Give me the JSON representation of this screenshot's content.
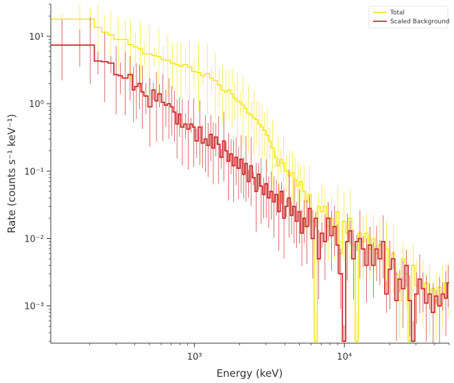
{
  "chart_data": {
    "type": "line",
    "xlabel": "Energy (keV)",
    "ylabel": "Rate (counts s⁻¹ keV⁻¹)",
    "xscale": "log",
    "yscale": "log",
    "xlim": [
      110,
      50000
    ],
    "ylim": [
      0.00028,
      30
    ],
    "x_ticks": [
      {
        "value": 1000,
        "label": "10³"
      },
      {
        "value": 10000,
        "label": "10⁴"
      }
    ],
    "y_ticks": [
      {
        "value": 0.001,
        "label": "10⁻³"
      },
      {
        "value": 0.01,
        "label": "10⁻²"
      },
      {
        "value": 0.1,
        "label": "10⁻¹"
      },
      {
        "value": 1,
        "label": "10⁰"
      },
      {
        "value": 10,
        "label": "10¹"
      }
    ],
    "legend": "top-right",
    "grid": false,
    "series": [
      {
        "name": "Total",
        "color": "#f5e61d",
        "style": "step",
        "points": [
          [
            110,
            18.0
          ],
          [
            155,
            18.0
          ],
          [
            190,
            18.0
          ],
          [
            215,
            13.5
          ],
          [
            240,
            11.5
          ],
          [
            265,
            10.5
          ],
          [
            290,
            9.0
          ],
          [
            330,
            9.0
          ],
          [
            360,
            7.5
          ],
          [
            390,
            7.0
          ],
          [
            420,
            6.5
          ],
          [
            450,
            5.5
          ],
          [
            480,
            5.5
          ],
          [
            520,
            5.2
          ],
          [
            560,
            5.0
          ],
          [
            600,
            4.5
          ],
          [
            640,
            4.4
          ],
          [
            690,
            4.0
          ],
          [
            740,
            3.8
          ],
          [
            790,
            3.6
          ],
          [
            840,
            3.8
          ],
          [
            900,
            3.5
          ],
          [
            960,
            3.0
          ],
          [
            1030,
            2.9
          ],
          [
            1100,
            2.6
          ],
          [
            1180,
            2.8
          ],
          [
            1260,
            2.4
          ],
          [
            1340,
            2.2
          ],
          [
            1420,
            1.9
          ],
          [
            1500,
            1.6
          ],
          [
            1580,
            1.5
          ],
          [
            1660,
            1.6
          ],
          [
            1740,
            1.4
          ],
          [
            1820,
            1.2
          ],
          [
            1900,
            1.1
          ],
          [
            1980,
            1.05
          ],
          [
            2060,
            0.95
          ],
          [
            2150,
            0.85
          ],
          [
            2240,
            0.72
          ],
          [
            2340,
            0.68
          ],
          [
            2440,
            0.62
          ],
          [
            2540,
            0.58
          ],
          [
            2650,
            0.5
          ],
          [
            2760,
            0.45
          ],
          [
            2880,
            0.4
          ],
          [
            3000,
            0.34
          ],
          [
            3120,
            0.28
          ],
          [
            3250,
            0.22
          ],
          [
            3400,
            0.16
          ],
          [
            3550,
            0.12
          ],
          [
            3700,
            0.15
          ],
          [
            3850,
            0.13
          ],
          [
            4000,
            0.1
          ],
          [
            4200,
            0.085
          ],
          [
            4400,
            0.095
          ],
          [
            4600,
            0.075
          ],
          [
            4800,
            0.06
          ],
          [
            5000,
            0.07
          ],
          [
            5250,
            0.05
          ],
          [
            5500,
            0.035
          ],
          [
            5750,
            0.045
          ],
          [
            6000,
            0.018
          ],
          [
            6300,
            0.0003
          ],
          [
            6600,
            0.03
          ],
          [
            6900,
            0.025
          ],
          [
            7250,
            0.03
          ],
          [
            7600,
            0.015
          ],
          [
            8000,
            0.02
          ],
          [
            8400,
            0.012
          ],
          [
            8800,
            0.025
          ],
          [
            9200,
            0.006
          ],
          [
            9700,
            0.018
          ],
          [
            10200,
            0.012
          ],
          [
            10700,
            0.02
          ],
          [
            11200,
            0.008
          ],
          [
            11800,
            0.0003
          ],
          [
            12400,
            0.012
          ],
          [
            13000,
            0.009
          ],
          [
            13700,
            0.012
          ],
          [
            14400,
            0.007
          ],
          [
            15200,
            0.01
          ],
          [
            16000,
            0.006
          ],
          [
            16800,
            0.008
          ],
          [
            17700,
            0.005
          ],
          [
            18600,
            0.007
          ],
          [
            19600,
            0.004
          ],
          [
            20600,
            0.006
          ],
          [
            21700,
            0.003
          ],
          [
            22800,
            0.0012
          ],
          [
            24000,
            0.005
          ],
          [
            25300,
            0.003
          ],
          [
            26600,
            0.0003
          ],
          [
            28000,
            0.004
          ],
          [
            29500,
            0.002
          ],
          [
            31000,
            0.0025
          ],
          [
            32600,
            0.0018
          ],
          [
            34300,
            0.0022
          ],
          [
            36100,
            0.0015
          ],
          [
            38000,
            0.0018
          ],
          [
            40000,
            0.0012
          ],
          [
            42000,
            0.0019
          ],
          [
            44200,
            0.0016
          ],
          [
            46500,
            0.0022
          ],
          [
            48500,
            0.002
          ]
        ]
      },
      {
        "name": "Scaled  Background",
        "color": "#cc2a2a",
        "style": "step",
        "points": [
          [
            110,
            7.4
          ],
          [
            155,
            7.4
          ],
          [
            190,
            7.4
          ],
          [
            215,
            4.3
          ],
          [
            240,
            4.2
          ],
          [
            265,
            4.0
          ],
          [
            290,
            2.7
          ],
          [
            310,
            2.6
          ],
          [
            330,
            2.4
          ],
          [
            360,
            2.7
          ],
          [
            385,
            1.6
          ],
          [
            400,
            1.8
          ],
          [
            420,
            2.0
          ],
          [
            440,
            1.5
          ],
          [
            460,
            1.3
          ],
          [
            490,
            0.9
          ],
          [
            520,
            1.6
          ],
          [
            545,
            1.1
          ],
          [
            570,
            1.4
          ],
          [
            600,
            1.05
          ],
          [
            630,
            0.95
          ],
          [
            660,
            1.0
          ],
          [
            690,
            0.9
          ],
          [
            720,
            0.75
          ],
          [
            750,
            0.5
          ],
          [
            780,
            0.7
          ],
          [
            810,
            0.45
          ],
          [
            850,
            0.5
          ],
          [
            890,
            0.42
          ],
          [
            930,
            0.5
          ],
          [
            970,
            0.45
          ],
          [
            1010,
            0.28
          ],
          [
            1060,
            0.45
          ],
          [
            1110,
            0.26
          ],
          [
            1160,
            0.3
          ],
          [
            1210,
            0.24
          ],
          [
            1260,
            0.35
          ],
          [
            1310,
            0.22
          ],
          [
            1360,
            0.32
          ],
          [
            1420,
            0.25
          ],
          [
            1480,
            0.16
          ],
          [
            1540,
            0.28
          ],
          [
            1600,
            0.2
          ],
          [
            1660,
            0.14
          ],
          [
            1720,
            0.18
          ],
          [
            1790,
            0.12
          ],
          [
            1860,
            0.16
          ],
          [
            1930,
            0.11
          ],
          [
            2010,
            0.15
          ],
          [
            2090,
            0.09
          ],
          [
            2170,
            0.13
          ],
          [
            2250,
            0.07
          ],
          [
            2340,
            0.12
          ],
          [
            2430,
            0.08
          ],
          [
            2530,
            0.05
          ],
          [
            2630,
            0.09
          ],
          [
            2730,
            0.06
          ],
          [
            2840,
            0.045
          ],
          [
            2950,
            0.065
          ],
          [
            3070,
            0.04
          ],
          [
            3190,
            0.05
          ],
          [
            3320,
            0.035
          ],
          [
            3450,
            0.045
          ],
          [
            3590,
            0.025
          ],
          [
            3730,
            0.05
          ],
          [
            3880,
            0.02
          ],
          [
            4030,
            0.03
          ],
          [
            4190,
            0.04
          ],
          [
            4360,
            0.022
          ],
          [
            4530,
            0.03
          ],
          [
            4710,
            0.018
          ],
          [
            4900,
            0.025
          ],
          [
            5100,
            0.012
          ],
          [
            5300,
            0.02
          ],
          [
            5500,
            0.015
          ],
          [
            5750,
            0.028
          ],
          [
            6000,
            0.01
          ],
          [
            6300,
            0.02
          ],
          [
            6600,
            0.005
          ],
          [
            6900,
            0.012
          ],
          [
            7250,
            0.009
          ],
          [
            7600,
            0.02
          ],
          [
            8000,
            0.011
          ],
          [
            8400,
            0.015
          ],
          [
            8800,
            0.008
          ],
          [
            9200,
            0.003
          ],
          [
            9700,
            0.0003
          ],
          [
            10200,
            0.009
          ],
          [
            10700,
            0.013
          ],
          [
            11200,
            0.005
          ],
          [
            11800,
            0.009
          ],
          [
            12400,
            0.01
          ],
          [
            13000,
            0.007
          ],
          [
            13700,
            0.004
          ],
          [
            14400,
            0.008
          ],
          [
            15200,
            0.004
          ],
          [
            16000,
            0.007
          ],
          [
            16800,
            0.005
          ],
          [
            17700,
            0.009
          ],
          [
            18600,
            0.0015
          ],
          [
            19600,
            0.0035
          ],
          [
            20600,
            0.005
          ],
          [
            21700,
            0.0012
          ],
          [
            22800,
            0.0025
          ],
          [
            24000,
            0.0018
          ],
          [
            25300,
            0.004
          ],
          [
            26600,
            0.0012
          ],
          [
            28000,
            0.0003
          ],
          [
            29500,
            0.0015
          ],
          [
            31000,
            0.0025
          ],
          [
            32600,
            0.0018
          ],
          [
            34300,
            0.0011
          ],
          [
            36100,
            0.0015
          ],
          [
            38000,
            0.0008
          ],
          [
            40000,
            0.0014
          ],
          [
            42000,
            0.001
          ],
          [
            44200,
            0.0015
          ],
          [
            46500,
            0.0013
          ],
          [
            48500,
            0.0022
          ]
        ]
      }
    ]
  }
}
